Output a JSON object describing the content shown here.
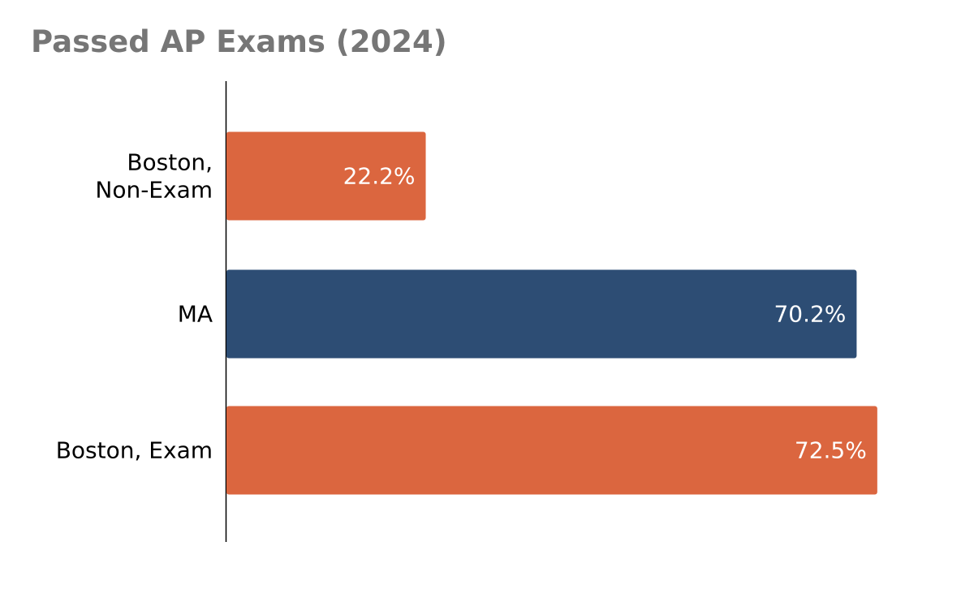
{
  "chart_data": {
    "type": "bar",
    "orientation": "horizontal",
    "title": "Passed AP Exams (2024)",
    "categories": [
      "Boston,\nNon-Exam",
      "MA",
      "Boston, Exam"
    ],
    "values": [
      22.2,
      70.2,
      72.5
    ],
    "value_labels": [
      "22.2%",
      "70.2%",
      "72.5%"
    ],
    "bar_colors": [
      "#db663f",
      "#2d4d74",
      "#db663f"
    ],
    "xlim": [
      0,
      100
    ],
    "xlabel": "",
    "ylabel": "",
    "grid": false,
    "legend": "none"
  }
}
